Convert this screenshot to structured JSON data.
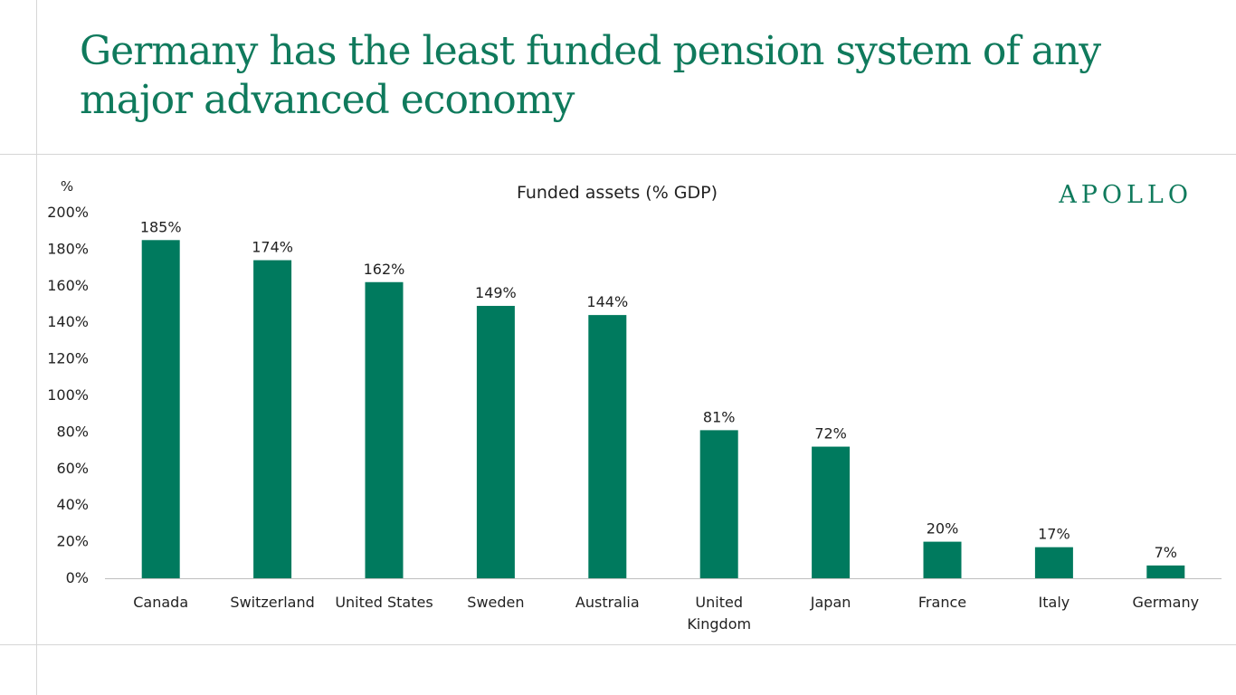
{
  "page": {
    "title": "Germany has the least funded pension system of any major advanced economy",
    "logo_text": "APOLLO",
    "accent_color": "#0f7a5c"
  },
  "chart_data": {
    "type": "bar",
    "title": "Funded assets (% GDP)",
    "ylabel": "%",
    "xlabel": "",
    "ylim": [
      0,
      200
    ],
    "yticks": [
      0,
      20,
      40,
      60,
      80,
      100,
      120,
      140,
      160,
      180,
      200
    ],
    "ytick_suffix": "%",
    "categories": [
      "Canada",
      "Switzerland",
      "United States",
      "Sweden",
      "Australia",
      "United Kingdom",
      "Japan",
      "France",
      "Italy",
      "Germany"
    ],
    "values": [
      185,
      174,
      162,
      149,
      144,
      81,
      72,
      20,
      17,
      7
    ],
    "data_labels": [
      "185%",
      "174%",
      "162%",
      "149%",
      "144%",
      "81%",
      "72%",
      "20%",
      "17%",
      "7%"
    ],
    "bar_color": "#007a5e",
    "grid": false,
    "legend": "none"
  }
}
